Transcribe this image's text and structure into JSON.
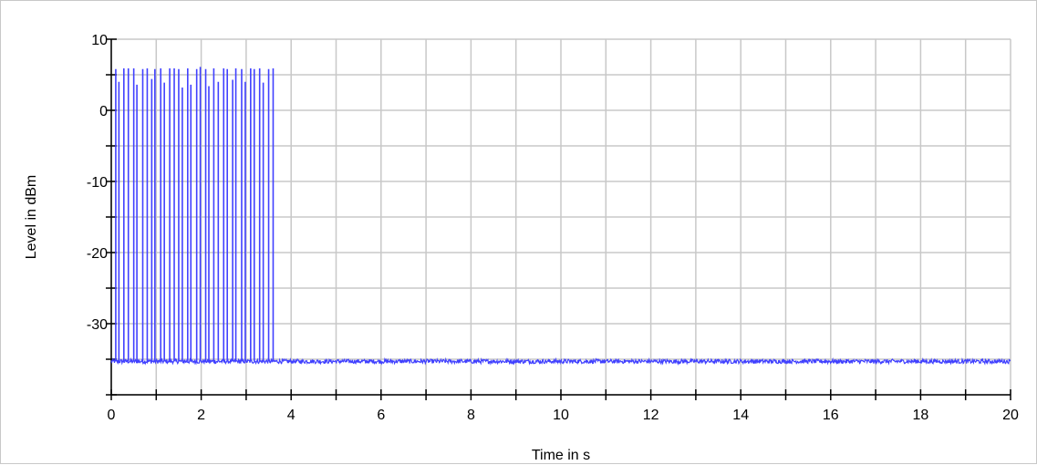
{
  "chart_data": {
    "type": "line",
    "xlabel": "Time in s",
    "ylabel": "Level in dBm",
    "xlim": [
      0,
      20
    ],
    "ylim": [
      -40,
      10
    ],
    "x_ticks": [
      0,
      2,
      4,
      6,
      8,
      10,
      12,
      14,
      16,
      18,
      20
    ],
    "x_tick_labels": [
      "0",
      "2",
      "4",
      "6",
      "8",
      "10",
      "12",
      "14",
      "16",
      "18",
      "20"
    ],
    "x_minor_step": 1,
    "y_ticks": [
      10,
      0,
      -10,
      -20,
      -30
    ],
    "y_tick_labels": [
      "10",
      "0",
      "-10",
      "-20",
      "-30"
    ],
    "y_minor_step": 5,
    "grid": true,
    "series": [
      {
        "color": "#4040ff",
        "noise_floor": -35.3,
        "noise_variation": 0.6,
        "burst_end_time": 3.7,
        "burst_times": [
          0.1,
          0.17,
          0.28,
          0.38,
          0.5,
          0.57,
          0.7,
          0.8,
          0.9,
          0.97,
          1.1,
          1.18,
          1.3,
          1.4,
          1.5,
          1.58,
          1.7,
          1.77,
          1.9,
          1.98,
          2.1,
          2.17,
          2.28,
          2.38,
          2.5,
          2.58,
          2.7,
          2.77,
          2.9,
          2.98,
          3.1,
          3.18,
          3.3,
          3.38,
          3.5,
          3.6
        ],
        "burst_peaks": [
          5.8,
          4.0,
          5.9,
          5.9,
          5.9,
          3.6,
          5.8,
          5.9,
          4.4,
          5.8,
          5.9,
          3.9,
          5.9,
          5.9,
          5.8,
          3.2,
          5.9,
          3.6,
          5.8,
          6.1,
          5.8,
          3.4,
          5.9,
          4.0,
          5.9,
          5.8,
          4.3,
          5.9,
          5.8,
          4.0,
          5.9,
          5.8,
          5.9,
          3.9,
          5.8,
          5.9
        ]
      }
    ]
  }
}
